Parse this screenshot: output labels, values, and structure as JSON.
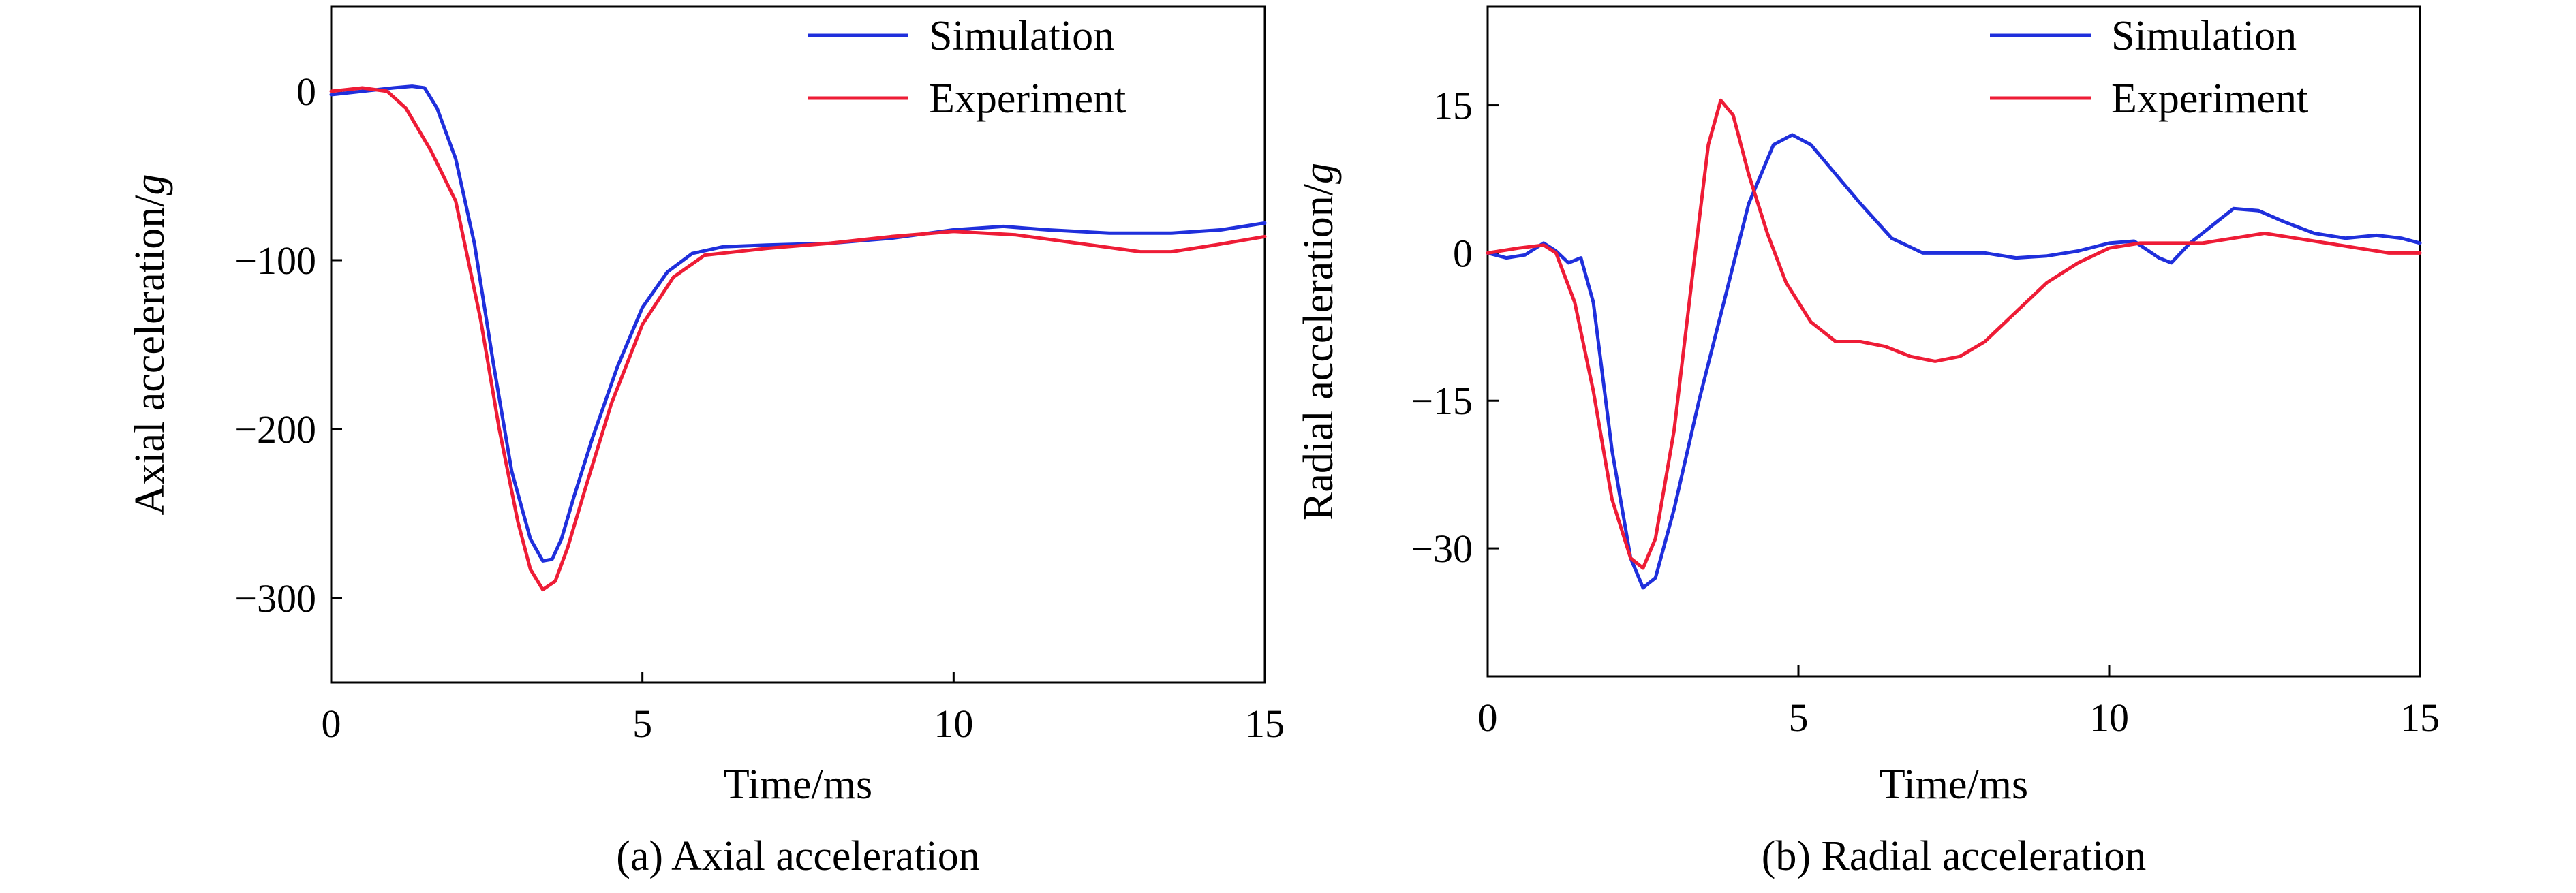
{
  "colors": {
    "simulation": "#1f2fdc",
    "experiment": "#ee1c36",
    "axis": "#000000"
  },
  "chart_data": [
    {
      "type": "line",
      "caption": "(a) Axial acceleration",
      "xlabel": "Time/ms",
      "ylabel": "Axial acceleration/",
      "ylabel_unit": "g",
      "xlim": [
        0,
        15
      ],
      "ylim": [
        -350,
        50
      ],
      "xticks": [
        0,
        5,
        10,
        15
      ],
      "yticks": [
        0,
        -100,
        -200,
        -300
      ],
      "xtick_labels": [
        "0",
        "5",
        "10",
        "15"
      ],
      "ytick_labels": [
        "0",
        "−100",
        "−200",
        "−300"
      ],
      "grid": false,
      "legend": "top-right",
      "series": [
        {
          "name": "Simulation",
          "color": "#1f2fdc",
          "x": [
            0,
            0.5,
            1.0,
            1.3,
            1.5,
            1.7,
            2.0,
            2.3,
            2.6,
            2.9,
            3.2,
            3.4,
            3.55,
            3.7,
            3.9,
            4.2,
            4.6,
            5.0,
            5.4,
            5.8,
            6.3,
            7.0,
            8.0,
            9.0,
            10.0,
            10.8,
            11.5,
            12.5,
            13.5,
            14.3,
            15.0
          ],
          "y": [
            -2,
            0,
            2,
            3,
            2,
            -10,
            -40,
            -90,
            -160,
            -225,
            -265,
            -278,
            -277,
            -265,
            -240,
            -205,
            -163,
            -128,
            -107,
            -96,
            -92,
            -91,
            -90,
            -87,
            -82,
            -80,
            -82,
            -84,
            -84,
            -82,
            -78
          ]
        },
        {
          "name": "Experiment",
          "color": "#ee1c36",
          "x": [
            0,
            0.5,
            0.9,
            1.2,
            1.6,
            2.0,
            2.4,
            2.7,
            3.0,
            3.2,
            3.4,
            3.6,
            3.8,
            4.1,
            4.5,
            5.0,
            5.5,
            6.0,
            7.0,
            8.0,
            9.0,
            10.0,
            11.0,
            12.0,
            13.0,
            13.5,
            14.2,
            15.0
          ],
          "y": [
            0,
            2,
            0,
            -10,
            -35,
            -65,
            -135,
            -200,
            -255,
            -283,
            -295,
            -290,
            -270,
            -233,
            -185,
            -138,
            -110,
            -97,
            -93,
            -90,
            -86,
            -83,
            -85,
            -90,
            -95,
            -95,
            -91,
            -86
          ]
        }
      ]
    },
    {
      "type": "line",
      "caption": "(b) Radial acceleration",
      "xlabel": "Time/ms",
      "ylabel": "Radial acceleration/",
      "ylabel_unit": "g",
      "xlim": [
        0,
        15
      ],
      "ylim": [
        -43,
        25
      ],
      "xticks": [
        0,
        5,
        10,
        15
      ],
      "yticks": [
        15,
        0,
        -15,
        -30
      ],
      "xtick_labels": [
        "0",
        "5",
        "10",
        "15"
      ],
      "ytick_labels": [
        "15",
        "0",
        "−15",
        "−30"
      ],
      "grid": false,
      "legend": "top-right",
      "series": [
        {
          "name": "Simulation",
          "color": "#1f2fdc",
          "x": [
            0,
            0.3,
            0.6,
            0.9,
            1.1,
            1.3,
            1.5,
            1.7,
            2.0,
            2.3,
            2.5,
            2.7,
            3.0,
            3.4,
            3.8,
            4.2,
            4.6,
            4.9,
            5.2,
            5.6,
            6.0,
            6.5,
            7.0,
            7.5,
            8.0,
            8.5,
            9.0,
            9.5,
            10.0,
            10.4,
            10.8,
            11.0,
            11.3,
            11.7,
            12.0,
            12.4,
            12.8,
            13.3,
            13.8,
            14.3,
            14.7,
            15.0
          ],
          "y": [
            0,
            -0.5,
            -0.2,
            1.0,
            0.2,
            -1.0,
            -0.5,
            -5,
            -20,
            -31,
            -34,
            -33,
            -26,
            -15,
            -5,
            5,
            11,
            12,
            11,
            8,
            5,
            1.5,
            0,
            0,
            0,
            -0.5,
            -0.3,
            0.2,
            1.0,
            1.2,
            -0.5,
            -1.0,
            1.0,
            3.0,
            4.5,
            4.3,
            3.2,
            2.0,
            1.5,
            1.8,
            1.5,
            1.0
          ]
        },
        {
          "name": "Experiment",
          "color": "#ee1c36",
          "x": [
            0,
            0.5,
            0.9,
            1.1,
            1.4,
            1.7,
            2.0,
            2.3,
            2.5,
            2.7,
            3.0,
            3.3,
            3.55,
            3.75,
            3.95,
            4.2,
            4.5,
            4.8,
            5.2,
            5.6,
            6.0,
            6.4,
            6.8,
            7.2,
            7.6,
            8.0,
            8.5,
            9.0,
            9.5,
            10.0,
            10.5,
            11.0,
            11.5,
            12.0,
            12.5,
            13.0,
            13.5,
            14.0,
            14.5,
            15.0
          ],
          "y": [
            0,
            0.5,
            0.8,
            0,
            -5,
            -14,
            -25,
            -31,
            -32,
            -29,
            -18,
            -2,
            11,
            15.5,
            14,
            8,
            2,
            -3,
            -7,
            -9,
            -9,
            -9.5,
            -10.5,
            -11,
            -10.5,
            -9,
            -6,
            -3,
            -1,
            0.5,
            1,
            1,
            1,
            1.5,
            2,
            1.5,
            1,
            0.5,
            0,
            0
          ]
        }
      ]
    }
  ]
}
